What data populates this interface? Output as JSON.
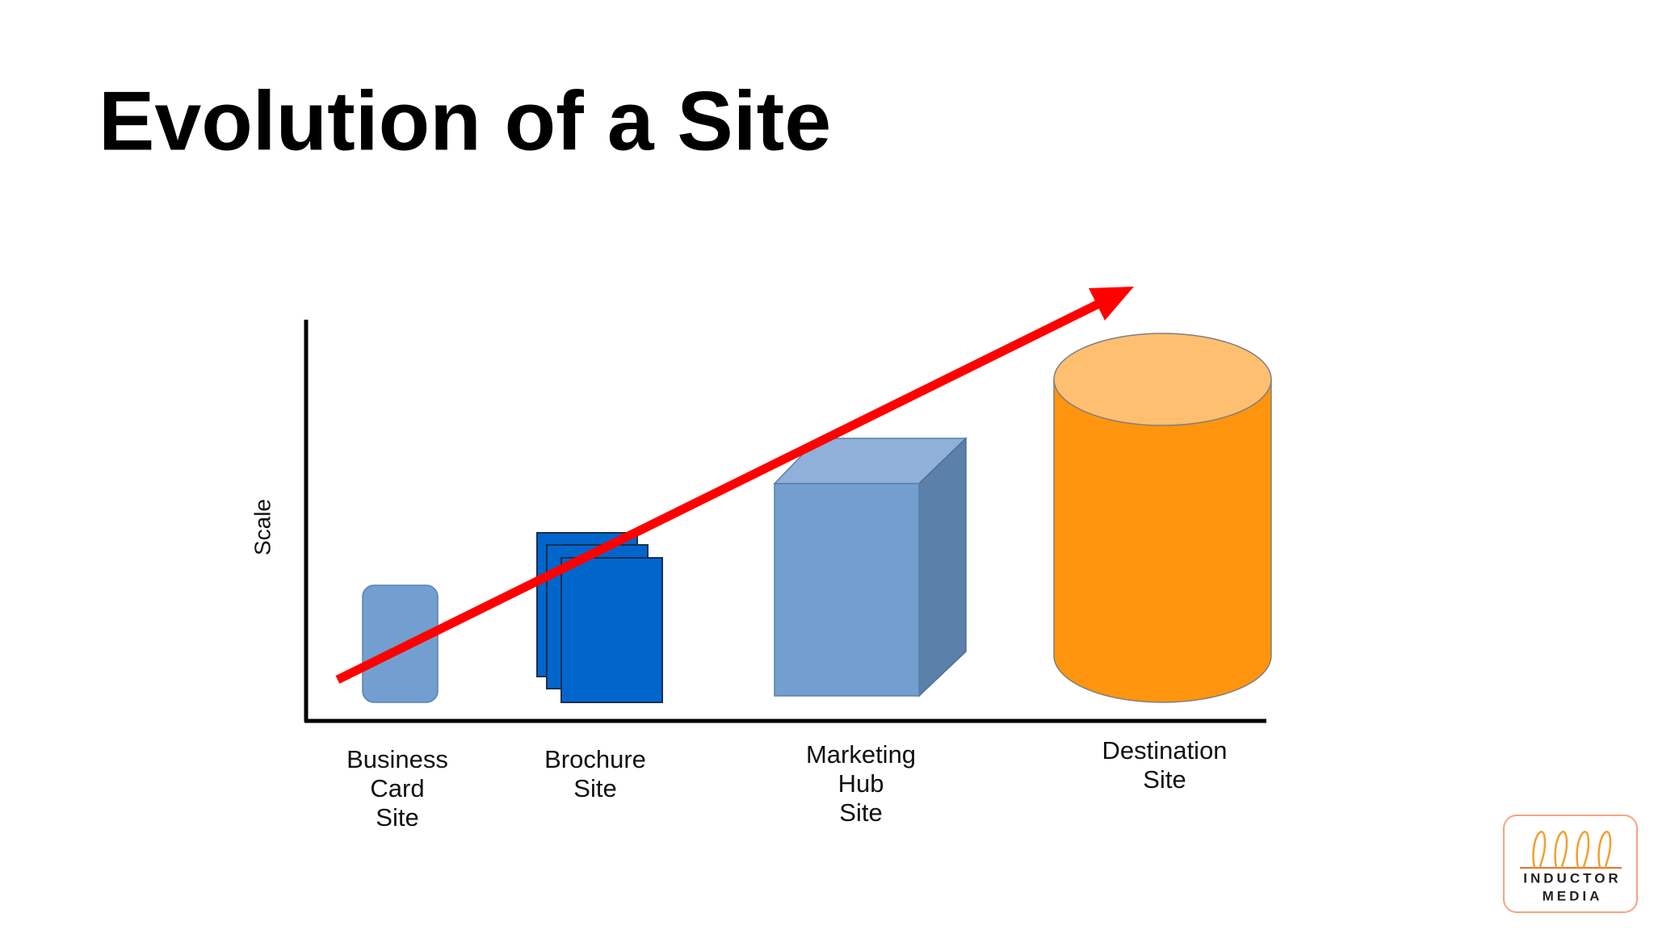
{
  "title": "Evolution of a Site",
  "axis_label": "Scale",
  "items": [
    {
      "lines": [
        "Business",
        "Card",
        "Site"
      ]
    },
    {
      "lines": [
        "Brochure",
        "Site"
      ]
    },
    {
      "lines": [
        "Marketing",
        "Hub",
        "Site"
      ]
    },
    {
      "lines": [
        "Destination",
        "Site"
      ]
    }
  ],
  "logo": {
    "lines": [
      "INDUCTOR",
      "MEDIA"
    ]
  }
}
